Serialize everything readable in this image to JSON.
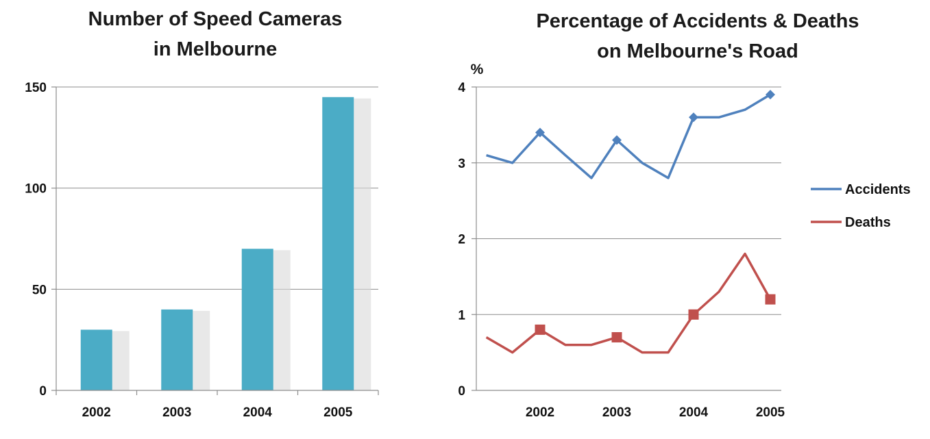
{
  "chart_data": [
    {
      "type": "bar",
      "title_lines": [
        "Number of  Speed Cameras",
        "in Melbourne"
      ],
      "categories": [
        "2002",
        "2003",
        "2004",
        "2005"
      ],
      "values": [
        30,
        40,
        70,
        145
      ],
      "ylim": [
        0,
        150
      ],
      "yticks": [
        0,
        50,
        100,
        150
      ],
      "grid": true,
      "bar_color": "#4bacc6"
    },
    {
      "type": "line",
      "title_lines": [
        "Percentage of Accidents & Deaths",
        "on Melbourne's Road"
      ],
      "ylabel": "%",
      "categories": [
        "2002",
        "2003",
        "2004",
        "2005"
      ],
      "ylim": [
        0,
        4
      ],
      "yticks": [
        0,
        1,
        2,
        3,
        4
      ],
      "grid": true,
      "legend_position": "right",
      "x": [
        1.3,
        1.64,
        2.0,
        2.33,
        2.67,
        3.0,
        3.33,
        3.67,
        4.0,
        4.33,
        4.67,
        5.0
      ],
      "series": [
        {
          "name": "Accidents",
          "color": "#4f81bd",
          "marker": "diamond",
          "values": [
            3.1,
            3.0,
            3.4,
            3.1,
            2.8,
            3.3,
            3.0,
            2.8,
            3.6,
            3.6,
            3.7,
            3.9
          ],
          "marker_indices": [
            2,
            5,
            8,
            11
          ]
        },
        {
          "name": "Deaths",
          "color": "#c0504d",
          "marker": "square",
          "values": [
            0.7,
            0.5,
            0.8,
            0.6,
            0.6,
            0.7,
            0.5,
            0.5,
            1.0,
            1.3,
            1.8,
            1.2
          ],
          "marker_indices": [
            2,
            5,
            8,
            11
          ]
        }
      ]
    }
  ]
}
